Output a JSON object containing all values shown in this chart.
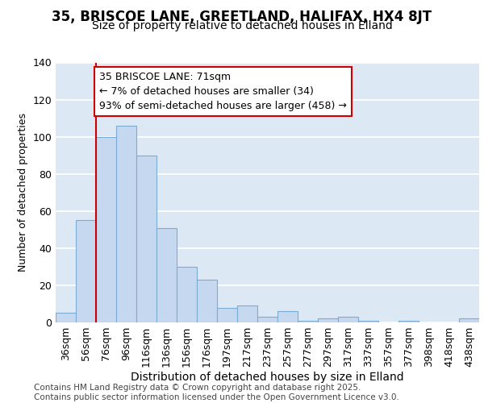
{
  "title1": "35, BRISCOE LANE, GREETLAND, HALIFAX, HX4 8JT",
  "title2": "Size of property relative to detached houses in Elland",
  "xlabel": "Distribution of detached houses by size in Elland",
  "ylabel": "Number of detached properties",
  "categories": [
    "36sqm",
    "56sqm",
    "76sqm",
    "96sqm",
    "116sqm",
    "136sqm",
    "156sqm",
    "176sqm",
    "197sqm",
    "217sqm",
    "237sqm",
    "257sqm",
    "277sqm",
    "297sqm",
    "317sqm",
    "337sqm",
    "357sqm",
    "377sqm",
    "398sqm",
    "418sqm",
    "438sqm"
  ],
  "values": [
    5,
    55,
    100,
    106,
    90,
    51,
    30,
    23,
    8,
    9,
    3,
    6,
    1,
    2,
    3,
    1,
    0,
    1,
    0,
    0,
    2
  ],
  "bar_color": "#c5d8f0",
  "bar_edge_color": "#7badd4",
  "annotation_text": "35 BRISCOE LANE: 71sqm\n← 7% of detached houses are smaller (34)\n93% of semi-detached houses are larger (458) →",
  "annotation_box_color": "#ffffff",
  "annotation_box_edge": "#cc0000",
  "red_line_color": "#cc0000",
  "red_line_index": 2,
  "ylim": [
    0,
    140
  ],
  "yticks": [
    0,
    20,
    40,
    60,
    80,
    100,
    120,
    140
  ],
  "background_color": "#dde8f5",
  "grid_color": "#ffffff",
  "footer": "Contains HM Land Registry data © Crown copyright and database right 2025.\nContains public sector information licensed under the Open Government Licence v3.0.",
  "title1_fontsize": 12,
  "title2_fontsize": 10,
  "xlabel_fontsize": 10,
  "ylabel_fontsize": 9,
  "tick_fontsize": 9,
  "annotation_fontsize": 9,
  "footer_fontsize": 7.5
}
